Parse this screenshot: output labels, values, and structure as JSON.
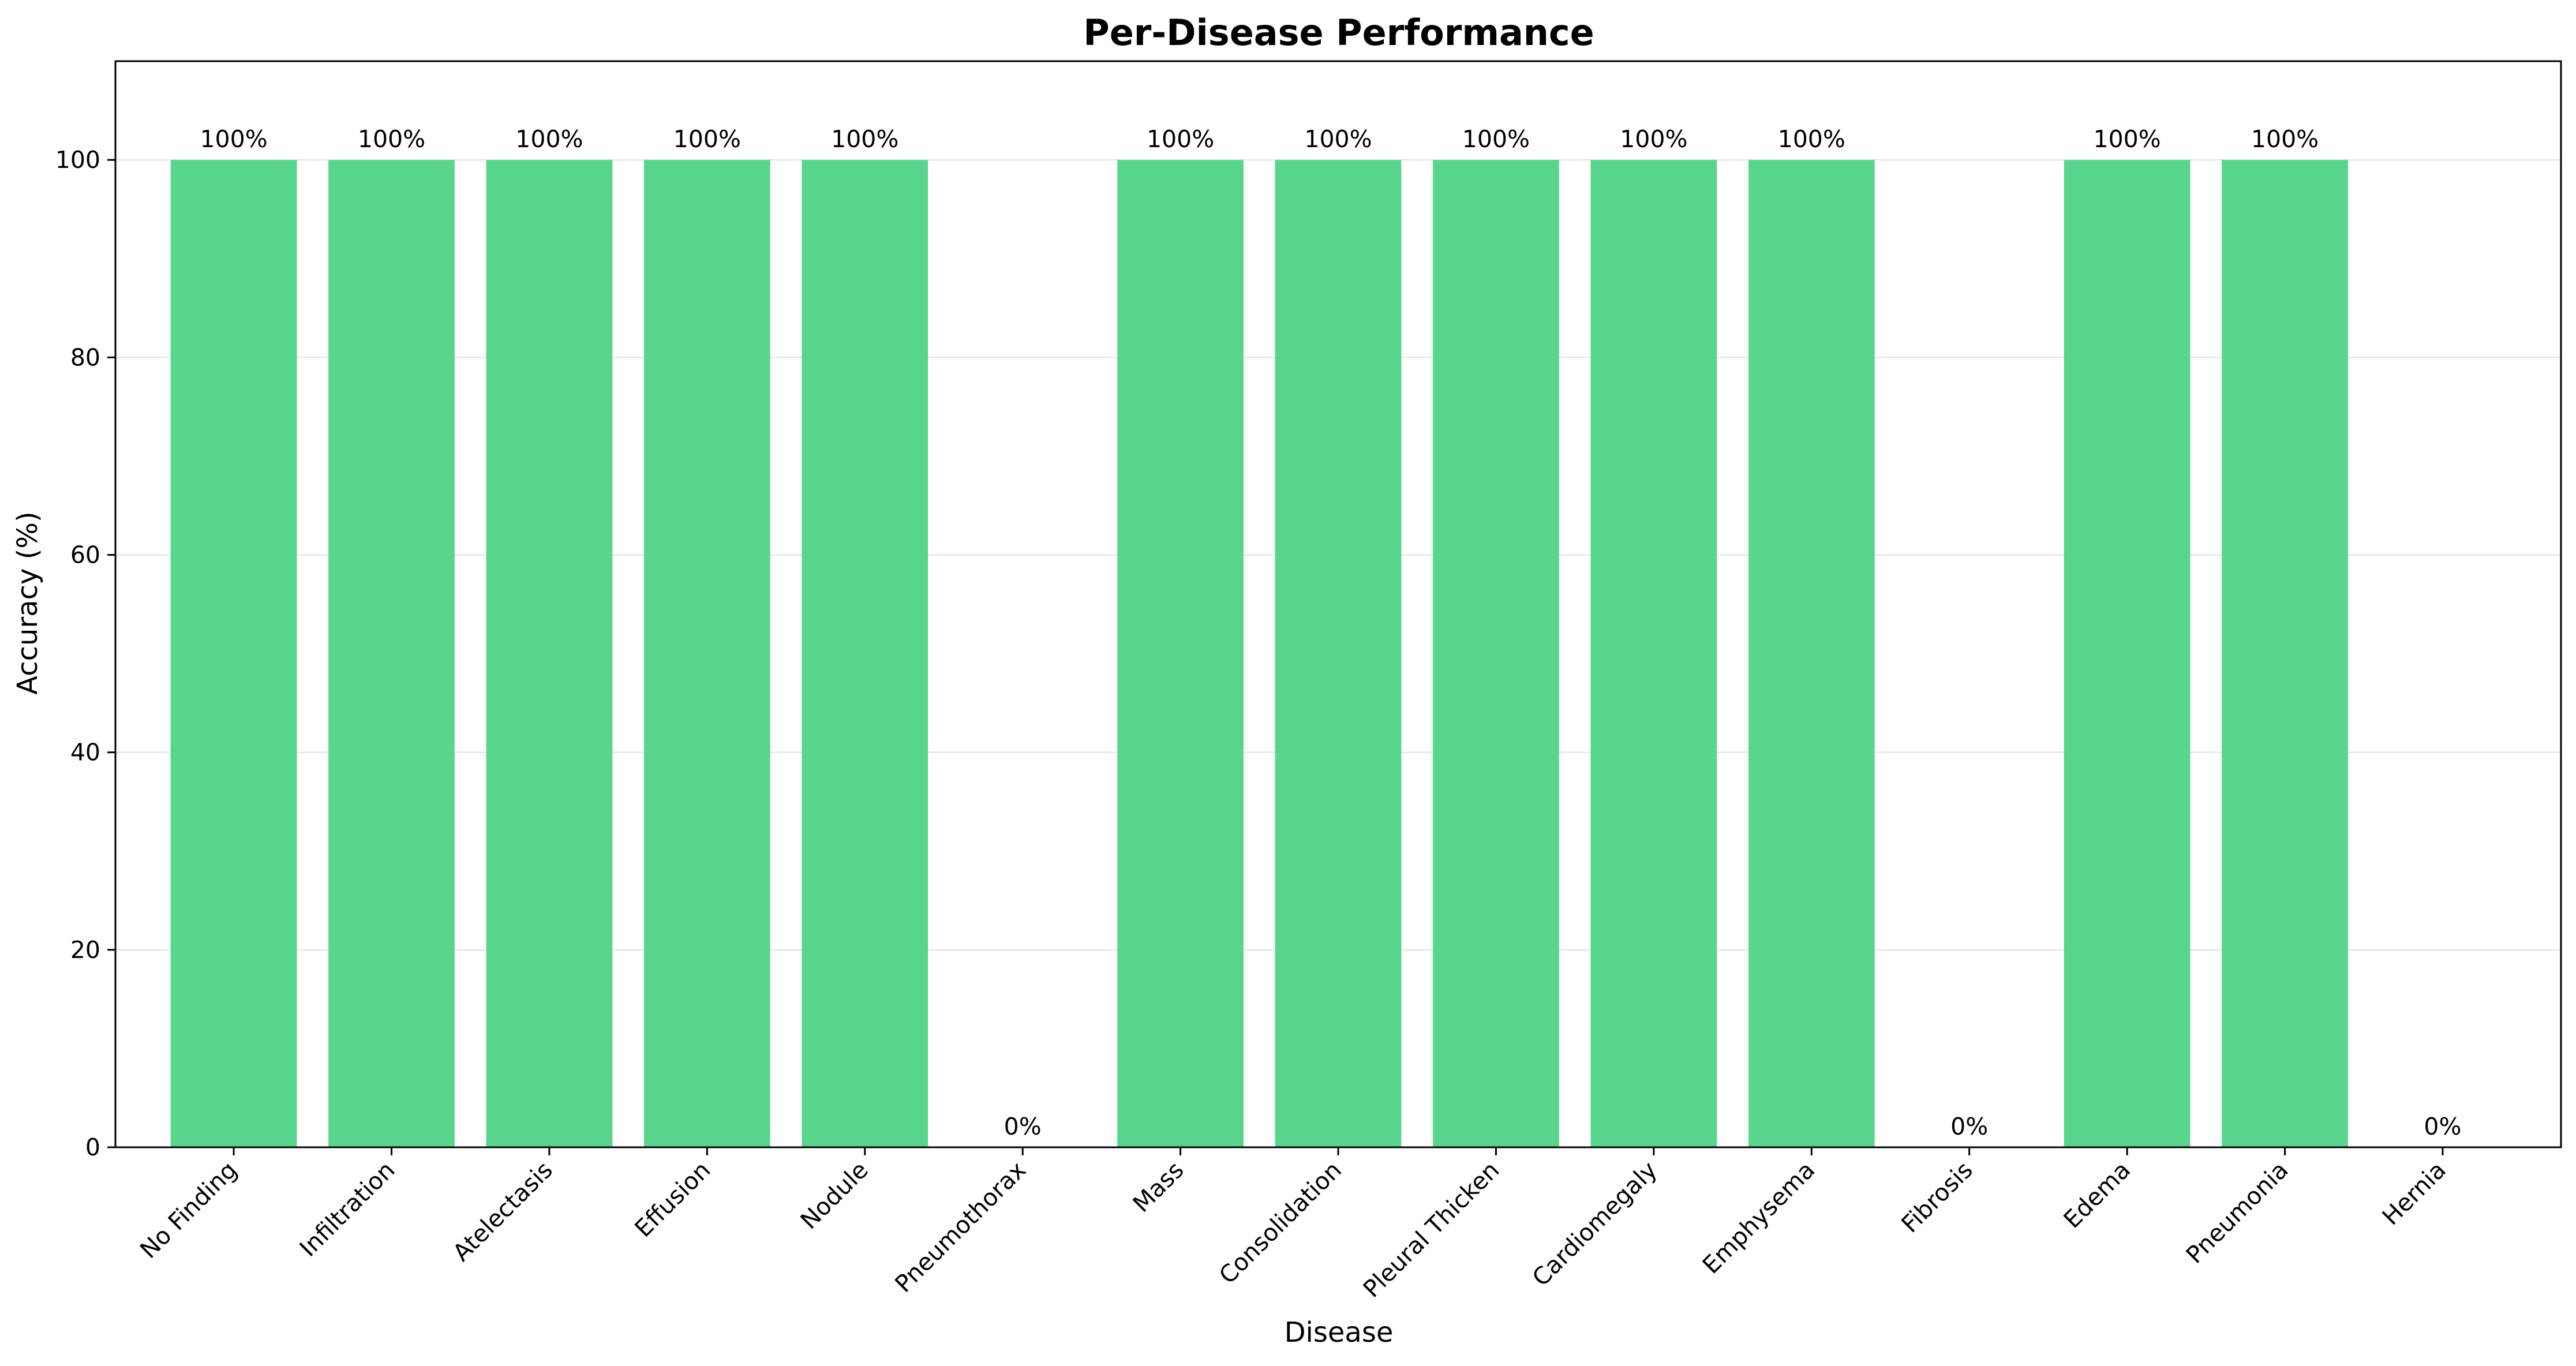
{
  "chart_data": {
    "type": "bar",
    "title": "Per-Disease Performance",
    "xlabel": "Disease",
    "ylabel": "Accuracy (%)",
    "categories": [
      "No Finding",
      "Infiltration",
      "Atelectasis",
      "Effusion",
      "Nodule",
      "Pneumothorax",
      "Mass",
      "Consolidation",
      "Pleural Thicken",
      "Cardiomegaly",
      "Emphysema",
      "Fibrosis",
      "Edema",
      "Pneumonia",
      "Hernia"
    ],
    "values": [
      100,
      100,
      100,
      100,
      100,
      0,
      100,
      100,
      100,
      100,
      100,
      0,
      100,
      100,
      0
    ],
    "data_labels": [
      "100%",
      "100%",
      "100%",
      "100%",
      "100%",
      "0%",
      "100%",
      "100%",
      "100%",
      "100%",
      "100%",
      "0%",
      "100%",
      "100%",
      "0%"
    ],
    "ylim": [
      0,
      110
    ],
    "yticks": [
      0,
      20,
      40,
      60,
      80,
      100
    ],
    "grid": "horizontal",
    "legend": "none",
    "bar_color": "#58d68d"
  }
}
